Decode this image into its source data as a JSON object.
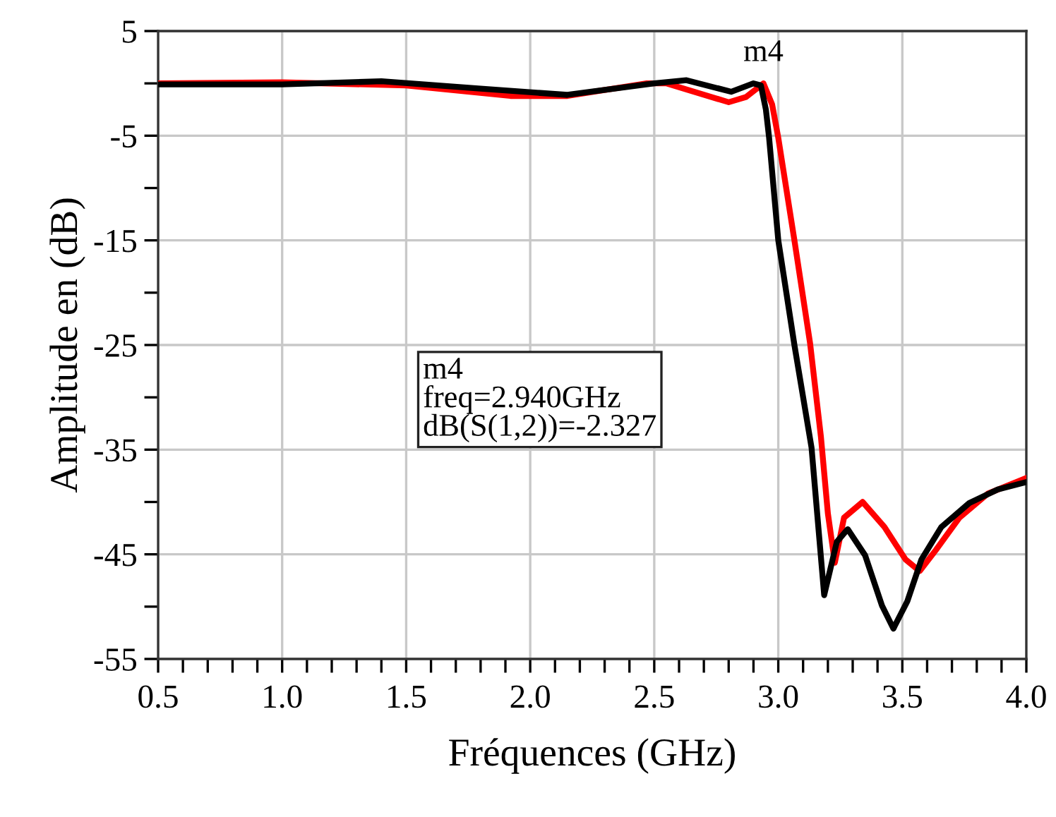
{
  "chart_data": {
    "type": "line",
    "xlabel": "Fréquences (GHz)",
    "ylabel": "Amplitude en (dB)",
    "series": [
      {
        "color": "#000000",
        "x": [
          0.5,
          1.0,
          1.4,
          1.8,
          2.15,
          2.5,
          2.63,
          2.81,
          2.9,
          2.93,
          2.95,
          2.963,
          3.0,
          3.065,
          3.134,
          3.185,
          3.236,
          3.28,
          3.35,
          3.418,
          3.464,
          3.52,
          3.577,
          3.657,
          3.77,
          3.885,
          4.0
        ],
        "values": [
          -0.1,
          -0.1,
          0.2,
          -0.5,
          -1.1,
          0,
          0.3,
          -0.8,
          0,
          -0.2,
          -2.5,
          -5.2,
          -15,
          -25,
          -34.8,
          -48.9,
          -43.8,
          -42.6,
          -45.1,
          -49.9,
          -52.1,
          -49.5,
          -45.5,
          -42.4,
          -40.1,
          -38.8,
          -38.1
        ]
      },
      {
        "color": "#ff0000",
        "x": [
          0.5,
          1.0,
          1.5,
          1.92,
          2.15,
          2.47,
          2.55,
          2.8,
          2.87,
          2.94,
          2.975,
          3.0,
          3.065,
          3.128,
          3.172,
          3.2,
          3.228,
          3.265,
          3.34,
          3.428,
          3.513,
          3.57,
          3.635,
          3.73,
          3.845,
          4.0
        ],
        "values": [
          0,
          0.1,
          -0.2,
          -1.2,
          -1.2,
          0,
          0,
          -1.8,
          -1.3,
          0,
          -2,
          -5.2,
          -15,
          -24.8,
          -33.8,
          -41.1,
          -45.8,
          -41.5,
          -40.0,
          -42.4,
          -45.5,
          -46.6,
          -44.6,
          -41.5,
          -39.2,
          -37.7
        ]
      }
    ],
    "annotations": [
      {
        "text": "m4",
        "x": 2.94,
        "y": 0
      },
      "m4\nfreq=2.940GHz\ndB(S(1,2))=-2.327"
    ],
    "xlim": [
      0.5,
      4.0
    ],
    "ylim": [
      -55,
      5
    ],
    "xticks": [
      0.5,
      {
        "value": 0.6,
        "label": null
      },
      {
        "value": 0.7,
        "label": null
      },
      {
        "value": 0.8,
        "label": null
      },
      {
        "value": 0.9,
        "label": null
      },
      {
        "value": 1.0,
        "label": "1.0"
      },
      {
        "value": 1.1,
        "label": null
      },
      {
        "value": 1.2,
        "label": null
      },
      {
        "value": 1.3,
        "label": null
      },
      {
        "value": 1.4,
        "label": null
      },
      1.5,
      {
        "value": 1.6,
        "label": null
      },
      {
        "value": 1.7,
        "label": null
      },
      {
        "value": 1.8,
        "label": null
      },
      {
        "value": 1.9,
        "label": null
      },
      {
        "value": 2.0,
        "label": "2.0"
      },
      {
        "value": 2.1,
        "label": null
      },
      {
        "value": 2.2,
        "label": null
      },
      {
        "value": 2.3,
        "label": null
      },
      {
        "value": 2.4,
        "label": null
      },
      2.5,
      {
        "value": 2.6,
        "label": null
      },
      {
        "value": 2.7,
        "label": null
      },
      {
        "value": 2.8,
        "label": null
      },
      {
        "value": 2.9,
        "label": null
      },
      {
        "value": 3.0,
        "label": "3.0"
      },
      {
        "value": 3.1,
        "label": null
      },
      {
        "value": 3.2,
        "label": null
      },
      {
        "value": 3.3,
        "label": null
      },
      {
        "value": 3.4,
        "label": null
      },
      3.5,
      {
        "value": 3.6,
        "label": null
      },
      {
        "value": 3.7,
        "label": null
      },
      {
        "value": 3.8,
        "label": null
      },
      {
        "value": 3.9,
        "label": null
      },
      {
        "value": 4.0,
        "label": "4.0"
      }
    ],
    "yticks": [
      5,
      {
        "value": 0,
        "label": null
      },
      -5,
      {
        "value": -10,
        "label": null
      },
      -15,
      {
        "value": -20,
        "label": null
      },
      -25,
      {
        "value": -30,
        "label": null
      },
      -35,
      {
        "value": -40,
        "label": null
      },
      -45,
      {
        "value": -50,
        "label": null
      },
      -55
    ],
    "grid": true,
    "marker": "none",
    "line_style": "solid"
  }
}
